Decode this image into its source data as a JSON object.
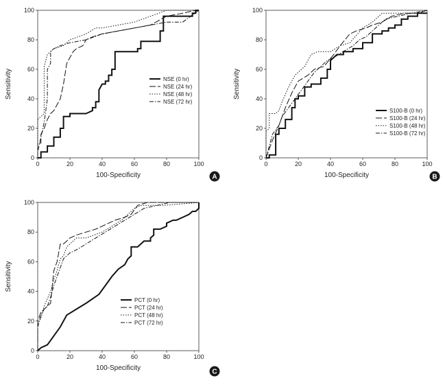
{
  "figure": {
    "panels": [
      "A",
      "B",
      "C"
    ]
  },
  "chart_data": [
    {
      "panel": "A",
      "type": "line",
      "xlabel": "100-Specificity",
      "ylabel": "Sensitivity",
      "xlim": [
        0,
        100
      ],
      "ylim": [
        0,
        100
      ],
      "xticks": [
        0,
        20,
        40,
        60,
        80,
        100
      ],
      "yticks": [
        0,
        20,
        40,
        60,
        80,
        100
      ],
      "legend_position": "center-right",
      "series": [
        {
          "name": "NSE (0 hr)",
          "style": "solid-bold",
          "x": [
            0,
            2,
            2,
            6,
            6,
            10,
            10,
            14,
            14,
            16,
            16,
            20,
            20,
            30,
            34,
            34,
            36,
            36,
            38,
            38,
            40,
            42,
            42,
            44,
            44,
            46,
            46,
            48,
            48,
            56,
            62,
            62,
            64,
            64,
            76,
            76,
            78,
            78,
            96,
            96,
            98,
            98,
            100
          ],
          "y": [
            0,
            0,
            4,
            4,
            8,
            8,
            14,
            14,
            20,
            20,
            28,
            28,
            30,
            30,
            32,
            34,
            34,
            38,
            38,
            46,
            50,
            50,
            52,
            52,
            56,
            56,
            60,
            60,
            72,
            72,
            72,
            74,
            74,
            79,
            79,
            86,
            86,
            96,
            96,
            98,
            98,
            100,
            100
          ]
        },
        {
          "name": "NSE (24 hr)",
          "style": "long-dash",
          "x": [
            0,
            0,
            2,
            2,
            4,
            6,
            8,
            10,
            14,
            16,
            18,
            20,
            22,
            24,
            28,
            30,
            34,
            40,
            50,
            60,
            70,
            80,
            90,
            98,
            100
          ],
          "y": [
            0,
            10,
            10,
            16,
            20,
            26,
            30,
            32,
            40,
            50,
            64,
            68,
            72,
            74,
            76,
            80,
            82,
            84,
            86,
            88,
            90,
            96,
            98,
            100,
            100
          ]
        },
        {
          "name": "NSE (48 hr)",
          "style": "dotted",
          "x": [
            0,
            0,
            2,
            4,
            4,
            6,
            8,
            10,
            16,
            20,
            30,
            36,
            40,
            50,
            60,
            70,
            80,
            90,
            100
          ],
          "y": [
            0,
            26,
            28,
            30,
            62,
            70,
            72,
            74,
            76,
            80,
            84,
            88,
            88,
            90,
            92,
            96,
            100,
            100,
            100
          ]
        },
        {
          "name": "NSE (72 hr)",
          "style": "dash-dot",
          "x": [
            0,
            0,
            2,
            4,
            6,
            6,
            8,
            8,
            10,
            14,
            20,
            30,
            40,
            50,
            60,
            70,
            80,
            90,
            100
          ],
          "y": [
            0,
            4,
            14,
            24,
            40,
            60,
            64,
            72,
            74,
            76,
            78,
            80,
            84,
            86,
            88,
            90,
            92,
            92,
            100
          ]
        }
      ]
    },
    {
      "panel": "B",
      "type": "line",
      "xlabel": "100-Specificity",
      "ylabel": "Sensitivity",
      "xlim": [
        0,
        100
      ],
      "ylim": [
        0,
        100
      ],
      "xticks": [
        0,
        20,
        40,
        60,
        80,
        100
      ],
      "yticks": [
        0,
        20,
        40,
        60,
        80,
        100
      ],
      "legend_position": "center-right",
      "series": [
        {
          "name": "S100-B (0 hr)",
          "style": "solid-bold",
          "x": [
            0,
            2,
            2,
            6,
            6,
            8,
            8,
            12,
            12,
            16,
            16,
            18,
            18,
            20,
            20,
            24,
            24,
            28,
            28,
            34,
            34,
            38,
            38,
            40,
            40,
            44,
            48,
            48,
            54,
            54,
            60,
            60,
            66,
            66,
            72,
            72,
            76,
            76,
            80,
            80,
            84,
            84,
            88,
            88,
            94,
            94,
            100
          ],
          "y": [
            0,
            0,
            2,
            2,
            16,
            16,
            20,
            20,
            26,
            26,
            34,
            34,
            40,
            40,
            42,
            42,
            48,
            48,
            50,
            50,
            54,
            54,
            60,
            60,
            66,
            70,
            70,
            72,
            72,
            74,
            74,
            78,
            78,
            84,
            84,
            86,
            86,
            88,
            88,
            90,
            90,
            94,
            94,
            96,
            96,
            98,
            98
          ]
        },
        {
          "name": "S100-B (24 hr)",
          "style": "long-dash",
          "x": [
            0,
            2,
            4,
            8,
            12,
            16,
            20,
            26,
            30,
            36,
            42,
            46,
            52,
            56,
            62,
            66,
            72,
            78,
            86,
            94,
            100
          ],
          "y": [
            0,
            6,
            12,
            22,
            34,
            44,
            52,
            56,
            60,
            62,
            70,
            76,
            84,
            86,
            88,
            90,
            92,
            96,
            98,
            98,
            100
          ]
        },
        {
          "name": "S100-B (48 hr)",
          "style": "dotted",
          "x": [
            0,
            0,
            2,
            2,
            6,
            8,
            10,
            14,
            18,
            24,
            28,
            32,
            40,
            46,
            52,
            60,
            66,
            72,
            80,
            90,
            100
          ],
          "y": [
            0,
            18,
            20,
            30,
            30,
            32,
            38,
            48,
            56,
            62,
            70,
            72,
            72,
            76,
            78,
            88,
            92,
            98,
            98,
            98,
            98
          ]
        },
        {
          "name": "S100-B (72 hr)",
          "style": "dash-dot",
          "x": [
            0,
            2,
            4,
            8,
            10,
            14,
            18,
            22,
            26,
            30,
            34,
            38,
            42,
            48,
            54,
            58,
            62,
            68,
            74,
            82,
            90,
            100
          ],
          "y": [
            0,
            8,
            16,
            22,
            28,
            34,
            40,
            46,
            52,
            58,
            62,
            66,
            68,
            72,
            76,
            80,
            82,
            88,
            94,
            96,
            98,
            100
          ]
        }
      ]
    },
    {
      "panel": "C",
      "type": "line",
      "xlabel": "100-Specificity",
      "ylabel": "Sensitivity",
      "xlim": [
        0,
        100
      ],
      "ylim": [
        0,
        100
      ],
      "xticks": [
        0,
        20,
        40,
        60,
        80,
        100
      ],
      "yticks": [
        0,
        20,
        40,
        60,
        80,
        100
      ],
      "legend_position": "bottom-center",
      "series": [
        {
          "name": "PCT (0 hr)",
          "style": "solid-bold",
          "x": [
            0,
            2,
            6,
            10,
            14,
            18,
            24,
            30,
            38,
            42,
            46,
            50,
            54,
            56,
            58,
            58,
            62,
            64,
            66,
            70,
            70,
            72,
            72,
            76,
            80,
            80,
            84,
            86,
            90,
            94,
            96,
            98,
            100,
            100
          ],
          "y": [
            0,
            2,
            4,
            10,
            16,
            24,
            28,
            32,
            38,
            44,
            50,
            55,
            58,
            62,
            64,
            70,
            70,
            72,
            74,
            74,
            76,
            78,
            82,
            82,
            84,
            86,
            88,
            88,
            90,
            92,
            94,
            94,
            96,
            100
          ]
        },
        {
          "name": "PCT (24 hr)",
          "style": "long-dash",
          "x": [
            0,
            0,
            2,
            4,
            6,
            8,
            10,
            12,
            14,
            16,
            18,
            20,
            24,
            30,
            36,
            40,
            48,
            54,
            58,
            62,
            68,
            76,
            82,
            100
          ],
          "y": [
            0,
            20,
            26,
            28,
            30,
            32,
            54,
            60,
            72,
            72,
            74,
            76,
            78,
            80,
            82,
            84,
            88,
            90,
            92,
            98,
            100,
            100,
            100,
            100
          ]
        },
        {
          "name": "PCT (48 hr)",
          "style": "dotted",
          "x": [
            0,
            0,
            2,
            4,
            8,
            10,
            12,
            14,
            16,
            18,
            20,
            24,
            30,
            40,
            46,
            52,
            56,
            60,
            64,
            70,
            78,
            100
          ],
          "y": [
            0,
            18,
            22,
            30,
            40,
            48,
            54,
            62,
            64,
            70,
            72,
            76,
            76,
            80,
            84,
            88,
            92,
            96,
            98,
            98,
            98,
            100
          ]
        },
        {
          "name": "PCT (72 hr)",
          "style": "dash-dot",
          "x": [
            0,
            0,
            2,
            4,
            6,
            8,
            10,
            12,
            14,
            16,
            20,
            24,
            30,
            36,
            42,
            48,
            54,
            60,
            66,
            74,
            82,
            100
          ],
          "y": [
            0,
            16,
            24,
            28,
            30,
            36,
            44,
            50,
            56,
            62,
            66,
            68,
            72,
            76,
            80,
            84,
            88,
            92,
            96,
            98,
            100,
            100
          ]
        }
      ]
    }
  ]
}
